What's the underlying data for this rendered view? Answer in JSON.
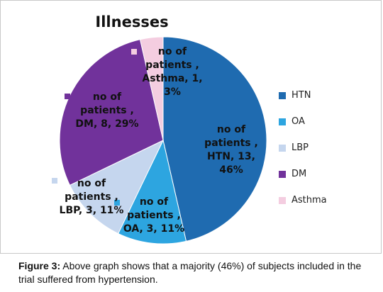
{
  "chart_data": {
    "type": "pie",
    "title": "Illnesses",
    "series_name": "no of patients",
    "slices": [
      {
        "category": "HTN",
        "value": 13,
        "percent": 46,
        "color": "#1f6bb0",
        "label": [
          "no of",
          "patients ,",
          "HTN, 13,",
          "46%"
        ]
      },
      {
        "category": "OA",
        "value": 3,
        "percent": 11,
        "color": "#2da5e0",
        "label": [
          "no of",
          "patients ,",
          "OA, 3, 11%"
        ]
      },
      {
        "category": "LBP",
        "value": 3,
        "percent": 11,
        "color": "#c5d6ee",
        "label": [
          "no of",
          "patients ,",
          "LBP, 3, 11%"
        ]
      },
      {
        "category": "DM",
        "value": 8,
        "percent": 29,
        "color": "#71329b",
        "label": [
          "no of",
          "patients ,",
          "DM, 8, 29%"
        ]
      },
      {
        "category": "Asthma",
        "value": 1,
        "percent": 3,
        "color": "#f4cde0",
        "label": [
          "no of",
          "patients ,",
          "Asthma, 1,",
          "3%"
        ]
      }
    ],
    "legend": [
      "HTN",
      "OA",
      "LBP",
      "DM",
      "Asthma"
    ],
    "legend_position": "right"
  },
  "caption": {
    "label": "Figure 3:",
    "text": " Above graph shows that a majority (46%) of subjects included in the trial suffered from hypertension."
  }
}
